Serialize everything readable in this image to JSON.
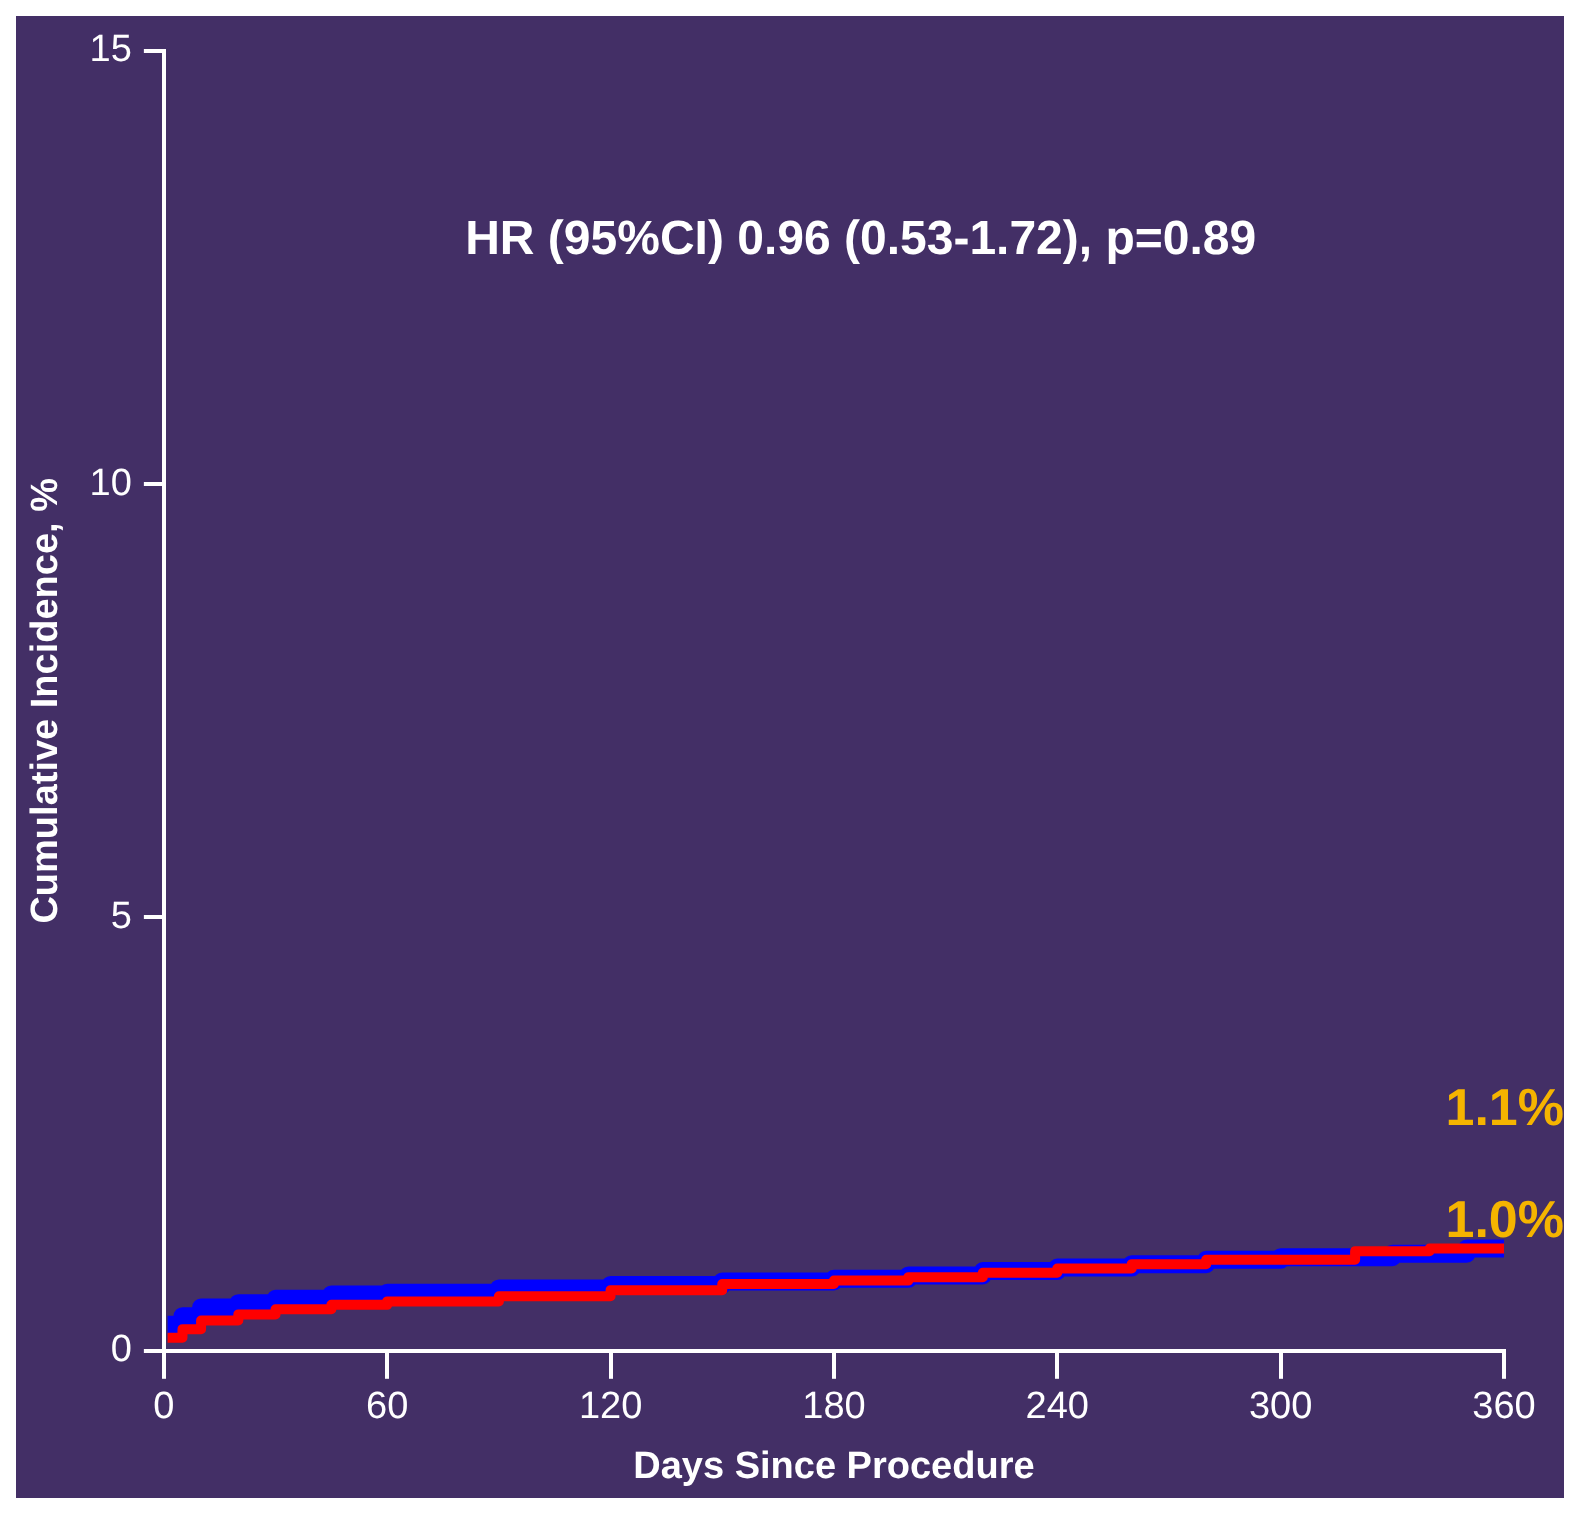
{
  "chart_data": {
    "type": "step",
    "xlabel": "Days Since Procedure",
    "ylabel": "Cumulative Incidence, %",
    "annotations": [
      "HR (95%CI) 0.96 (0.53-1.72), p=0.89",
      "1.1%",
      "1.0%"
    ],
    "series": [
      {
        "color": "#0000ff",
        "x": [
          1,
          5,
          10,
          20,
          30,
          45,
          60,
          90,
          120,
          150,
          180,
          200,
          220,
          240,
          260,
          280,
          300,
          330,
          350,
          360
        ],
        "values": [
          0.3,
          0.4,
          0.5,
          0.55,
          0.6,
          0.65,
          0.67,
          0.72,
          0.76,
          0.8,
          0.83,
          0.87,
          0.92,
          0.96,
          1.0,
          1.05,
          1.08,
          1.12,
          1.18,
          1.2
        ]
      },
      {
        "color": "#ff0000",
        "x": [
          1,
          5,
          10,
          20,
          30,
          45,
          60,
          90,
          120,
          150,
          180,
          200,
          220,
          240,
          260,
          280,
          300,
          320,
          340,
          360
        ],
        "values": [
          0.15,
          0.25,
          0.35,
          0.42,
          0.48,
          0.53,
          0.57,
          0.63,
          0.7,
          0.77,
          0.81,
          0.85,
          0.9,
          0.95,
          1.0,
          1.05,
          1.05,
          1.15,
          1.18,
          1.2
        ]
      }
    ],
    "xlim": [
      0,
      360
    ],
    "xticks": [
      0,
      60,
      120,
      180,
      240,
      300,
      360
    ],
    "ylim": [
      0,
      15
    ],
    "yticks": [
      0,
      5,
      10,
      15
    ],
    "grid": false,
    "legend": false,
    "marker": "none",
    "line_style": "solid"
  }
}
